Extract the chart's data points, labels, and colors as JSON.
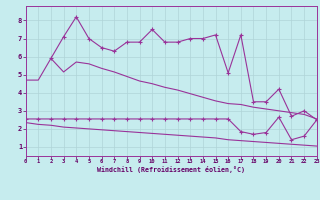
{
  "xlabel": "Windchill (Refroidissement éolien,°C)",
  "bg_color": "#c6ecee",
  "grid_color": "#b0d4d8",
  "line_color": "#993399",
  "x_ticks": [
    0,
    1,
    2,
    3,
    4,
    5,
    6,
    7,
    8,
    9,
    10,
    11,
    12,
    13,
    14,
    15,
    16,
    17,
    18,
    19,
    20,
    21,
    22,
    23
  ],
  "y_ticks": [
    1,
    2,
    3,
    4,
    5,
    6,
    7,
    8
  ],
  "xlim": [
    0,
    23
  ],
  "ylim": [
    0.5,
    8.8
  ],
  "line1_x": [
    0,
    1,
    2,
    3,
    4,
    5,
    6,
    7,
    8,
    9,
    10,
    11,
    12,
    13,
    14,
    15,
    16,
    17,
    18,
    19,
    20,
    21,
    22,
    23
  ],
  "line1_y": [
    4.7,
    4.7,
    5.9,
    5.15,
    5.7,
    5.6,
    5.35,
    5.15,
    4.9,
    4.65,
    4.5,
    4.3,
    4.15,
    3.95,
    3.75,
    3.55,
    3.4,
    3.35,
    3.2,
    3.1,
    3.0,
    2.9,
    2.8,
    2.55
  ],
  "line2_x": [
    2,
    3,
    4,
    5,
    6,
    7,
    8,
    9,
    10,
    11,
    12,
    13,
    14,
    15,
    16,
    17,
    18,
    19,
    20,
    21,
    22,
    23
  ],
  "line2_y": [
    5.9,
    7.1,
    8.2,
    7.0,
    6.5,
    6.3,
    6.8,
    6.8,
    7.5,
    6.8,
    6.8,
    7.0,
    7.0,
    7.2,
    5.1,
    7.2,
    3.5,
    3.5,
    4.2,
    2.7,
    3.0,
    2.5
  ],
  "line3_x": [
    0,
    1,
    2,
    3,
    4,
    5,
    6,
    7,
    8,
    9,
    10,
    11,
    12,
    13,
    14,
    15,
    16,
    17,
    18,
    19,
    20,
    21,
    22,
    23
  ],
  "line3_y": [
    2.55,
    2.55,
    2.55,
    2.55,
    2.55,
    2.55,
    2.55,
    2.55,
    2.55,
    2.55,
    2.55,
    2.55,
    2.55,
    2.55,
    2.55,
    2.55,
    2.55,
    1.85,
    1.7,
    1.8,
    2.65,
    1.4,
    1.6,
    2.5
  ],
  "line4_x": [
    0,
    1,
    2,
    3,
    4,
    5,
    6,
    7,
    8,
    9,
    10,
    11,
    12,
    13,
    14,
    15,
    16,
    17,
    18,
    19,
    20,
    21,
    22,
    23
  ],
  "line4_y": [
    2.35,
    2.25,
    2.2,
    2.1,
    2.05,
    2.0,
    1.95,
    1.9,
    1.85,
    1.8,
    1.75,
    1.7,
    1.65,
    1.6,
    1.55,
    1.5,
    1.4,
    1.35,
    1.3,
    1.25,
    1.2,
    1.15,
    1.1,
    1.05
  ]
}
